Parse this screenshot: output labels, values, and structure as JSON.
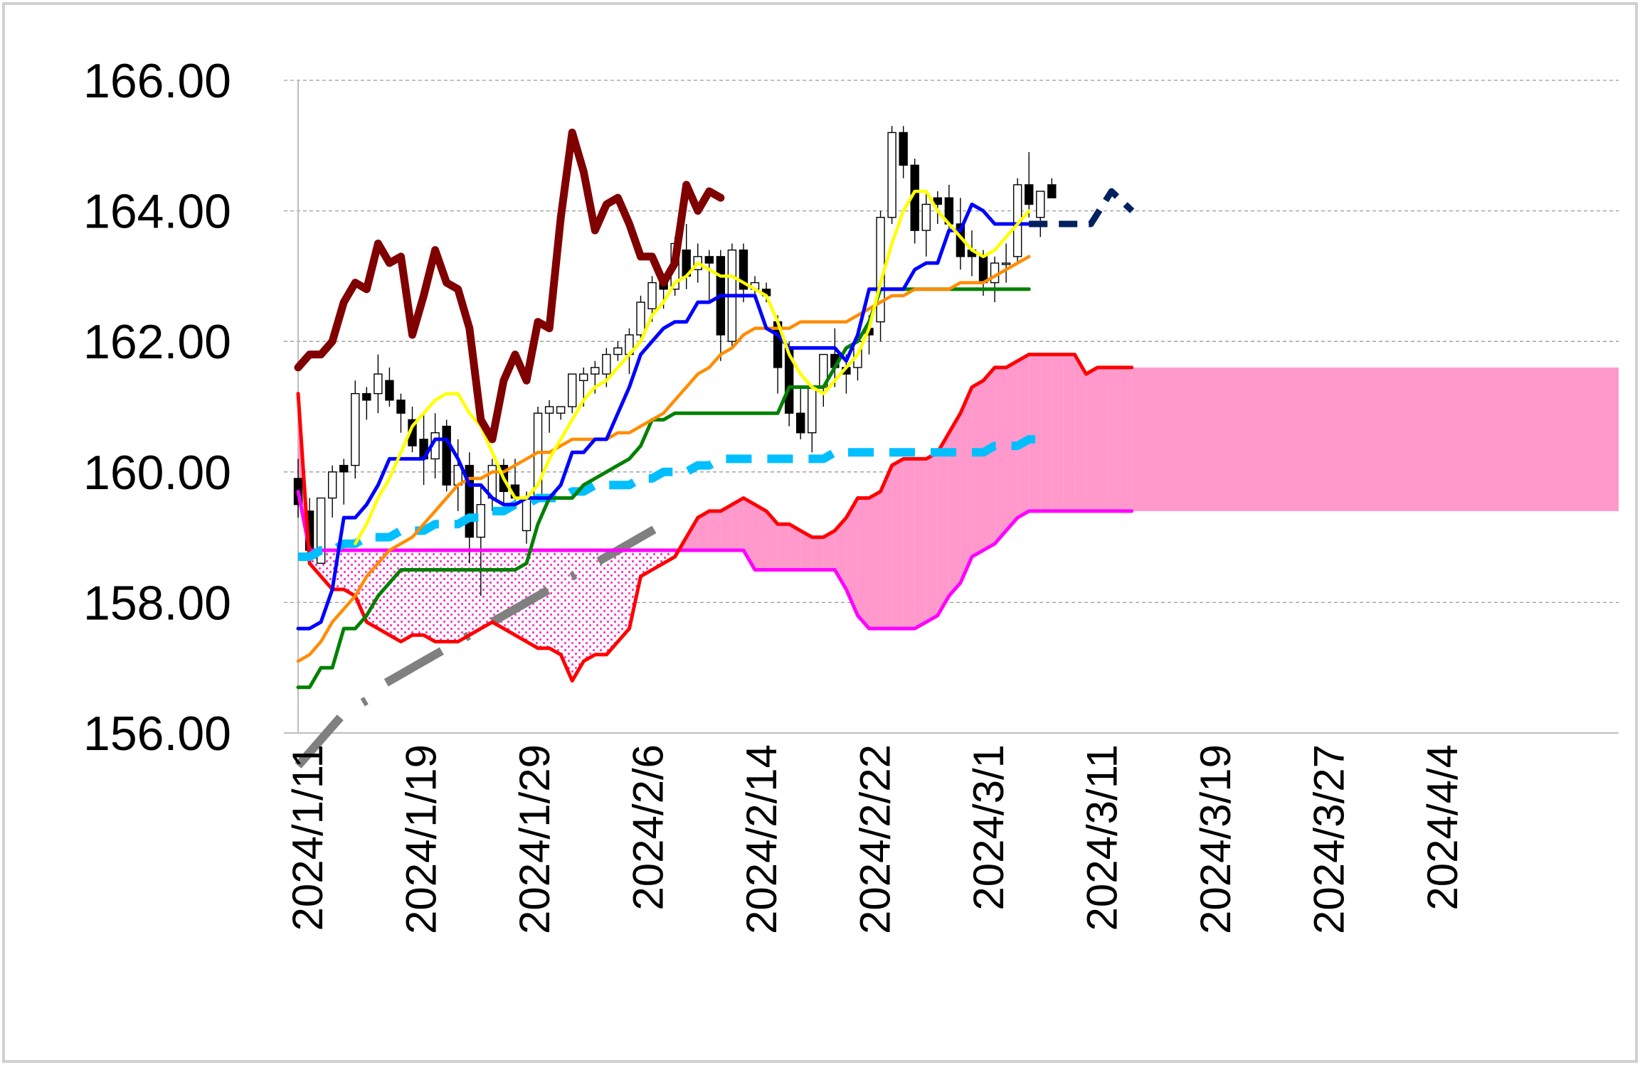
{
  "chart_data": {
    "type": "candlestick",
    "title": "",
    "xlabel": "",
    "ylabel": "",
    "ylim": [
      156,
      166
    ],
    "y_ticks": [
      "156.00",
      "158.00",
      "160.00",
      "162.00",
      "164.00",
      "166.00"
    ],
    "x_tick_labels": [
      "2024/1/11",
      "2024/1/19",
      "2024/1/29",
      "2024/2/6",
      "2024/2/14",
      "2024/2/22",
      "2024/3/1",
      "2024/3/11",
      "2024/3/19",
      "2024/3/27",
      "2024/4/4"
    ],
    "grid": "horizontal dashed",
    "legend": "none",
    "candles": [
      [
        159.9,
        160.2,
        159.3,
        159.5
      ],
      [
        159.4,
        159.6,
        158.7,
        158.8
      ],
      [
        158.6,
        159.6,
        158.6,
        159.6
      ],
      [
        159.6,
        160.1,
        159.3,
        160.0
      ],
      [
        160.1,
        160.2,
        159.5,
        160.0
      ],
      [
        160.1,
        161.4,
        159.9,
        161.2
      ],
      [
        161.2,
        161.3,
        160.8,
        161.1
      ],
      [
        161.2,
        161.8,
        160.9,
        161.5
      ],
      [
        161.4,
        161.6,
        161.0,
        161.1
      ],
      [
        161.1,
        161.2,
        160.6,
        160.9
      ],
      [
        160.8,
        161.0,
        160.3,
        160.4
      ],
      [
        160.5,
        160.9,
        159.8,
        160.2
      ],
      [
        160.2,
        160.9,
        159.9,
        160.6
      ],
      [
        160.7,
        160.8,
        159.7,
        159.8
      ],
      [
        159.8,
        160.5,
        159.4,
        160.1
      ],
      [
        160.1,
        160.3,
        158.6,
        159.0
      ],
      [
        159.0,
        159.8,
        158.1,
        159.5
      ],
      [
        159.6,
        160.2,
        159.4,
        160.1
      ],
      [
        160.1,
        160.2,
        159.5,
        159.7
      ],
      [
        159.8,
        160.2,
        159.5,
        159.6
      ],
      [
        159.1,
        159.7,
        158.9,
        159.6
      ],
      [
        159.6,
        161.0,
        159.6,
        160.9
      ],
      [
        160.9,
        161.1,
        160.6,
        161.0
      ],
      [
        160.9,
        161.0,
        160.8,
        161.0
      ],
      [
        161.0,
        161.5,
        160.9,
        161.5
      ],
      [
        161.4,
        161.6,
        161.0,
        161.5
      ],
      [
        161.5,
        161.7,
        161.2,
        161.6
      ],
      [
        161.5,
        161.9,
        161.3,
        161.8
      ],
      [
        161.8,
        162.0,
        161.7,
        161.9
      ],
      [
        161.8,
        162.2,
        161.5,
        162.1
      ],
      [
        162.1,
        162.7,
        162.0,
        162.6
      ],
      [
        162.5,
        163.0,
        162.3,
        162.9
      ],
      [
        162.9,
        163.0,
        162.5,
        162.8
      ],
      [
        162.8,
        163.6,
        162.7,
        163.5
      ],
      [
        163.4,
        163.8,
        162.8,
        163.0
      ],
      [
        163.1,
        163.5,
        162.9,
        163.3
      ],
      [
        163.3,
        163.4,
        162.6,
        163.2
      ],
      [
        163.3,
        163.4,
        161.7,
        162.1
      ],
      [
        162.0,
        163.5,
        161.9,
        163.4
      ],
      [
        163.4,
        163.5,
        162.6,
        162.8
      ],
      [
        162.8,
        163.0,
        162.7,
        162.9
      ],
      [
        162.8,
        162.9,
        162.6,
        162.7
      ],
      [
        162.3,
        162.4,
        161.2,
        161.6
      ],
      [
        161.9,
        162.0,
        160.7,
        160.9
      ],
      [
        160.9,
        161.3,
        160.5,
        160.6
      ],
      [
        160.6,
        161.3,
        160.3,
        161.3
      ],
      [
        161.3,
        161.8,
        161.0,
        161.8
      ],
      [
        161.8,
        162.2,
        161.3,
        161.6
      ],
      [
        161.6,
        161.8,
        161.2,
        161.5
      ],
      [
        161.6,
        162.2,
        161.4,
        162.0
      ],
      [
        162.2,
        162.4,
        161.8,
        162.1
      ],
      [
        162.3,
        164.0,
        162.0,
        163.9
      ],
      [
        163.9,
        165.3,
        163.8,
        165.2
      ],
      [
        165.2,
        165.3,
        164.5,
        164.7
      ],
      [
        164.7,
        164.8,
        163.5,
        163.7
      ],
      [
        163.7,
        164.3,
        163.3,
        164.1
      ],
      [
        164.2,
        164.3,
        163.8,
        164.1
      ],
      [
        164.2,
        164.4,
        163.7,
        163.8
      ],
      [
        163.8,
        164.2,
        163.1,
        163.3
      ],
      [
        163.4,
        163.7,
        163.0,
        163.3
      ],
      [
        163.3,
        163.4,
        162.7,
        162.9
      ],
      [
        162.9,
        163.3,
        162.6,
        163.2
      ],
      [
        163.2,
        163.5,
        162.9,
        163.2
      ],
      [
        163.3,
        164.5,
        163.2,
        164.4
      ],
      [
        164.4,
        164.9,
        163.9,
        164.1
      ],
      [
        163.9,
        164.3,
        163.6,
        164.3
      ],
      [
        164.4,
        164.5,
        164.2,
        164.2
      ]
    ],
    "series": [
      {
        "color": "#FFFF00",
        "values": [
          null,
          null,
          null,
          null,
          null,
          158.9,
          159.2,
          159.6,
          159.9,
          160.3,
          160.7,
          160.9,
          161.1,
          161.2,
          161.2,
          160.9,
          160.7,
          160.3,
          159.9,
          159.6,
          159.6,
          159.8,
          160.2,
          160.5,
          160.8,
          161.1,
          161.3,
          161.4,
          161.6,
          161.8,
          162.0,
          162.4,
          162.6,
          162.9,
          163.0,
          163.2,
          163.1,
          163.0,
          163.0,
          162.9,
          162.8,
          162.7,
          162.3,
          161.8,
          161.5,
          161.3,
          161.2,
          161.4,
          161.6,
          161.8,
          162.2,
          162.9,
          163.5,
          164.0,
          164.3,
          164.3,
          164.0,
          163.8,
          163.6,
          163.4,
          163.3,
          163.4,
          163.6,
          163.8,
          164.0
        ]
      },
      {
        "color": "#0000FF",
        "values": [
          157.6,
          157.6,
          157.7,
          158.2,
          159.3,
          159.3,
          159.5,
          159.8,
          160.2,
          160.2,
          160.2,
          160.2,
          160.5,
          160.5,
          160.2,
          159.8,
          159.8,
          159.6,
          159.5,
          159.5,
          159.6,
          159.6,
          159.6,
          159.8,
          160.3,
          160.3,
          160.5,
          160.5,
          160.9,
          161.3,
          161.8,
          162.0,
          162.2,
          162.3,
          162.3,
          162.6,
          162.6,
          162.7,
          162.7,
          162.7,
          162.7,
          162.2,
          162.1,
          161.9,
          161.9,
          161.9,
          161.9,
          161.9,
          161.7,
          162.1,
          162.8,
          162.8,
          162.8,
          162.8,
          163.1,
          163.2,
          163.2,
          163.7,
          163.7,
          164.1,
          164.0,
          163.8,
          163.8,
          163.8,
          163.8
        ],
        "forward": [
          163.8,
          163.8,
          163.8,
          163.8,
          164.3,
          164.0
        ]
      },
      {
        "color": "#008000",
        "values": [
          156.7,
          156.7,
          157.0,
          157.0,
          157.6,
          157.6,
          157.8,
          158.1,
          158.3,
          158.5,
          158.5,
          158.5,
          158.5,
          158.5,
          158.5,
          158.5,
          158.5,
          158.5,
          158.5,
          158.5,
          158.6,
          159.2,
          159.6,
          159.6,
          159.6,
          159.8,
          159.9,
          160.0,
          160.1,
          160.2,
          160.4,
          160.8,
          160.8,
          160.9,
          160.9,
          160.9,
          160.9,
          160.9,
          160.9,
          160.9,
          160.9,
          160.9,
          160.9,
          161.3,
          161.3,
          161.3,
          161.3,
          161.6,
          161.9,
          162.0,
          162.3,
          162.8,
          162.8,
          162.8,
          162.8,
          162.8,
          162.8,
          162.8,
          162.8,
          162.8,
          162.8,
          162.8,
          162.8,
          162.8,
          162.8
        ]
      },
      {
        "color": "#FF8C00",
        "values": [
          157.1,
          157.2,
          157.4,
          157.7,
          157.9,
          158.1,
          158.4,
          158.6,
          158.8,
          158.9,
          159.0,
          159.2,
          159.4,
          159.6,
          159.8,
          159.9,
          159.9,
          160.0,
          160.0,
          160.1,
          160.2,
          160.3,
          160.3,
          160.4,
          160.5,
          160.5,
          160.5,
          160.5,
          160.6,
          160.6,
          160.7,
          160.8,
          160.9,
          161.1,
          161.3,
          161.5,
          161.6,
          161.8,
          161.9,
          162.1,
          162.2,
          162.2,
          162.2,
          162.2,
          162.3,
          162.3,
          162.3,
          162.3,
          162.3,
          162.4,
          162.5,
          162.6,
          162.7,
          162.7,
          162.8,
          162.8,
          162.8,
          162.8,
          162.9,
          162.9,
          162.9,
          163.0,
          163.1,
          163.2,
          163.3
        ]
      },
      {
        "color": "#800000",
        "values": [
          161.6,
          161.8,
          161.8,
          162.0,
          162.6,
          162.9,
          162.8,
          163.5,
          163.2,
          163.3,
          162.1,
          162.7,
          163.4,
          162.9,
          162.8,
          162.2,
          160.8,
          160.5,
          161.4,
          161.8,
          161.4,
          162.3,
          162.2,
          163.9,
          165.2,
          164.6,
          163.7,
          164.1,
          164.2,
          163.8,
          163.3,
          163.3,
          162.9,
          163.2,
          164.4,
          164.0,
          164.3,
          164.2
        ]
      },
      {
        "color": "#FF0000",
        "values": [
          161.2,
          158.6,
          158.4,
          158.2,
          158.2,
          158.1,
          157.7,
          157.6,
          157.5,
          157.4,
          157.5,
          157.5,
          157.4,
          157.4,
          157.4,
          157.5,
          157.6,
          157.7,
          157.6,
          157.5,
          157.4,
          157.3,
          157.3,
          157.2,
          156.8,
          157.1,
          157.2,
          157.2,
          157.4,
          157.6,
          158.4,
          158.5,
          158.6,
          158.7,
          159.0,
          159.3,
          159.4,
          159.4,
          159.5,
          159.6,
          159.5,
          159.4,
          159.2,
          159.2,
          159.1,
          159.0,
          159.0,
          159.1,
          159.3,
          159.6,
          159.6,
          159.7,
          160.1,
          160.2,
          160.2,
          160.2,
          160.3,
          160.6,
          160.9,
          161.3,
          161.4,
          161.6,
          161.6,
          161.7,
          161.8,
          161.8,
          161.8,
          161.8,
          161.8,
          161.5,
          161.6,
          161.6,
          161.6,
          161.6
        ]
      },
      {
        "color": "#FF00FF",
        "values": [
          159.7,
          158.8,
          158.8,
          158.8,
          158.8,
          158.8,
          158.8,
          158.8,
          158.8,
          158.8,
          158.8,
          158.8,
          158.8,
          158.8,
          158.8,
          158.8,
          158.8,
          158.8,
          158.8,
          158.8,
          158.8,
          158.8,
          158.8,
          158.8,
          158.8,
          158.8,
          158.8,
          158.8,
          158.8,
          158.8,
          158.8,
          158.8,
          158.8,
          158.8,
          158.8,
          158.8,
          158.8,
          158.8,
          158.8,
          158.8,
          158.5,
          158.5,
          158.5,
          158.5,
          158.5,
          158.5,
          158.5,
          158.5,
          158.2,
          157.8,
          157.6,
          157.6,
          157.6,
          157.6,
          157.6,
          157.7,
          157.8,
          158.1,
          158.3,
          158.7,
          158.8,
          158.9,
          159.1,
          159.3,
          159.4,
          159.4,
          159.4,
          159.4,
          159.4,
          159.4,
          159.4,
          159.4,
          159.4,
          159.4
        ]
      },
      {
        "color": "#00BFFF",
        "values": [
          158.7,
          158.7,
          158.8,
          158.8,
          158.9,
          158.9,
          159.0,
          159.0,
          159.0,
          159.1,
          159.1,
          159.1,
          159.2,
          159.2,
          159.2,
          159.3,
          159.3,
          159.4,
          159.4,
          159.5,
          159.5,
          159.6,
          159.6,
          159.6,
          159.7,
          159.7,
          159.8,
          159.8,
          159.8,
          159.8,
          159.9,
          159.9,
          160.0,
          160.0,
          160.0,
          160.1,
          160.1,
          160.2,
          160.2,
          160.2,
          160.2,
          160.2,
          160.2,
          160.2,
          160.2,
          160.2,
          160.2,
          160.3,
          160.3,
          160.3,
          160.3,
          160.3,
          160.3,
          160.3,
          160.3,
          160.3,
          160.3,
          160.3,
          160.3,
          160.3,
          160.3,
          160.4,
          160.4,
          160.4,
          160.5,
          160.5
        ]
      },
      {
        "color": "#808080",
        "values": [
          155.5,
          155.7,
          155.9,
          156.1,
          156.3,
          156.4,
          156.5,
          156.7,
          156.8,
          156.9,
          157.0,
          157.1,
          157.2,
          157.3,
          157.4,
          157.5,
          157.6,
          157.7,
          157.8,
          157.9,
          158.0,
          158.1,
          158.2,
          158.3,
          158.4,
          158.5,
          158.6,
          158.7,
          158.8,
          158.9,
          159.0,
          159.1,
          159.2,
          159.3
        ]
      }
    ]
  }
}
